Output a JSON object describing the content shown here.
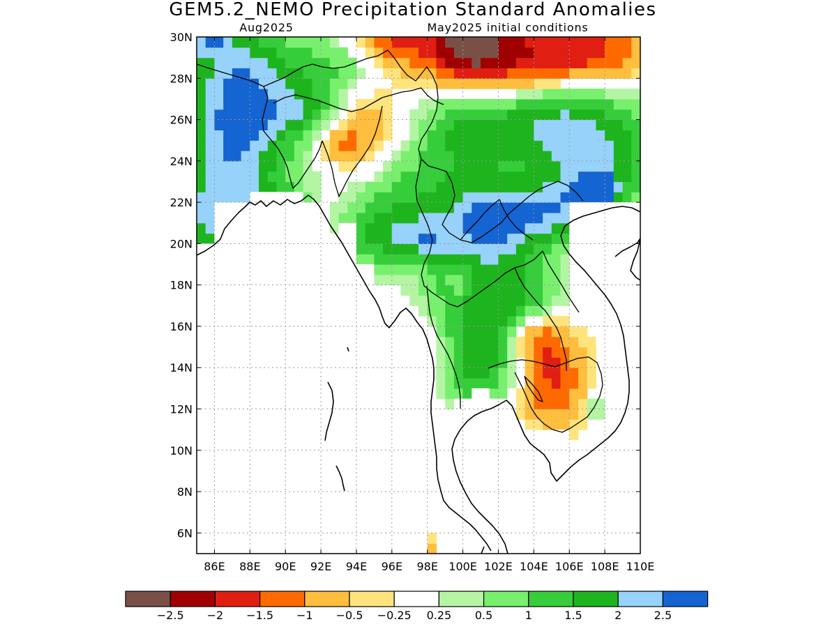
{
  "title": "GEM5.2_NEMO Precipitation Standard Anomalies",
  "subtitle_left": "Aug2025",
  "subtitle_right": "May2025 initial conditions",
  "map": {
    "lon_range": [
      85,
      110
    ],
    "lat_range": [
      5,
      30
    ],
    "lon_ticks": [
      {
        "value": 86,
        "label": "86E"
      },
      {
        "value": 88,
        "label": "88E"
      },
      {
        "value": 90,
        "label": "90E"
      },
      {
        "value": 92,
        "label": "92E"
      },
      {
        "value": 94,
        "label": "94E"
      },
      {
        "value": 96,
        "label": "96E"
      },
      {
        "value": 98,
        "label": "98E"
      },
      {
        "value": 100,
        "label": "100E"
      },
      {
        "value": 102,
        "label": "102E"
      },
      {
        "value": 104,
        "label": "104E"
      },
      {
        "value": 106,
        "label": "106E"
      },
      {
        "value": 108,
        "label": "108E"
      },
      {
        "value": 110,
        "label": "110E"
      }
    ],
    "lat_ticks": [
      {
        "value": 30,
        "label": "30N"
      },
      {
        "value": 28,
        "label": "28N"
      },
      {
        "value": 26,
        "label": "26N"
      },
      {
        "value": 24,
        "label": "24N"
      },
      {
        "value": 22,
        "label": "22N"
      },
      {
        "value": 20,
        "label": "20N"
      },
      {
        "value": 18,
        "label": "18N"
      },
      {
        "value": 16,
        "label": "16N"
      },
      {
        "value": 14,
        "label": "14N"
      },
      {
        "value": 12,
        "label": "12N"
      },
      {
        "value": 10,
        "label": "10N"
      },
      {
        "value": 8,
        "label": "8N"
      },
      {
        "value": 6,
        "label": "6N"
      }
    ],
    "grid": true,
    "mask_ocean": true
  },
  "legend": {
    "colors": [
      "#7a5046",
      "#a00000",
      "#e01e12",
      "#ff6a00",
      "#ffbe3d",
      "#ffe47e",
      "#ffffff",
      "#b4f5a4",
      "#78f06e",
      "#36cd3a",
      "#1eb41e",
      "#96d2fa",
      "#1464d2"
    ],
    "labels": [
      "−2.5",
      "−2",
      "−1.5",
      "−1",
      "−0.5",
      "−0.25",
      "0.25",
      "0.5",
      "1",
      "1.5",
      "2",
      "2.5"
    ]
  },
  "field": {
    "blobs": [
      {
        "lon": 101.5,
        "lat": 21.0,
        "amp": 2.6,
        "sx": 1.8,
        "sy": 1.6
      },
      {
        "lon": 97.5,
        "lat": 20.3,
        "amp": 1.6,
        "sx": 1.4,
        "sy": 0.8
      },
      {
        "lon": 97.5,
        "lat": 22.5,
        "amp": 1.1,
        "sx": 1.8,
        "sy": 1.5
      },
      {
        "lon": 95.0,
        "lat": 20.5,
        "amp": 1.2,
        "sx": 1.3,
        "sy": 1.5
      },
      {
        "lon": 99.0,
        "lat": 18.5,
        "amp": 0.7,
        "sx": 1.2,
        "sy": 1.5
      },
      {
        "lon": 101.0,
        "lat": 16.0,
        "amp": 1.6,
        "sx": 1.6,
        "sy": 1.8
      },
      {
        "lon": 101.0,
        "lat": 13.5,
        "amp": 1.0,
        "sx": 1.5,
        "sy": 1.2
      },
      {
        "lon": 103.5,
        "lat": 17.5,
        "amp": 1.2,
        "sx": 1.6,
        "sy": 1.2
      },
      {
        "lon": 105.0,
        "lat": 21.5,
        "amp": 1.8,
        "sx": 1.6,
        "sy": 1.1
      },
      {
        "lon": 107.5,
        "lat": 22.5,
        "amp": 2.4,
        "sx": 1.0,
        "sy": 0.7
      },
      {
        "lon": 107.5,
        "lat": 24.5,
        "amp": 1.8,
        "sx": 2.8,
        "sy": 1.8
      },
      {
        "lon": 104.5,
        "lat": 26.0,
        "amp": 1.4,
        "sx": 2.5,
        "sy": 1.4
      },
      {
        "lon": 100.0,
        "lat": 25.5,
        "amp": 1.4,
        "sx": 1.8,
        "sy": 1.5
      },
      {
        "lon": 87.5,
        "lat": 28.0,
        "amp": 2.2,
        "sx": 2.2,
        "sy": 2.2
      },
      {
        "lon": 87.0,
        "lat": 24.0,
        "amp": 2.0,
        "sx": 2.4,
        "sy": 2.2
      },
      {
        "lon": 86.0,
        "lat": 21.0,
        "amp": 1.5,
        "sx": 1.5,
        "sy": 1.4
      },
      {
        "lon": 85.5,
        "lat": 30.0,
        "amp": 1.6,
        "sx": 1.0,
        "sy": 0.7
      },
      {
        "lon": 89.5,
        "lat": 22.0,
        "amp": 1.6,
        "sx": 1.0,
        "sy": 0.5
      },
      {
        "lon": 91.0,
        "lat": 26.5,
        "amp": 1.2,
        "sx": 1.6,
        "sy": 0.8
      },
      {
        "lon": 92.5,
        "lat": 28.5,
        "amp": 1.0,
        "sx": 1.8,
        "sy": 1.0
      },
      {
        "lon": 94.5,
        "lat": 25.5,
        "amp": -0.9,
        "sx": 1.5,
        "sy": 1.5
      },
      {
        "lon": 93.0,
        "lat": 24.8,
        "amp": -0.8,
        "sx": 0.8,
        "sy": 0.6
      },
      {
        "lon": 100.5,
        "lat": 29.5,
        "amp": -3.0,
        "sx": 2.0,
        "sy": 1.4
      },
      {
        "lon": 96.0,
        "lat": 30.0,
        "amp": -1.4,
        "sx": 1.5,
        "sy": 1.0
      },
      {
        "lon": 107.0,
        "lat": 29.3,
        "amp": -1.8,
        "sx": 2.4,
        "sy": 1.2
      },
      {
        "lon": 104.0,
        "lat": 28.5,
        "amp": -0.8,
        "sx": 1.5,
        "sy": 1.2
      },
      {
        "lon": 99.8,
        "lat": 18.3,
        "amp": -1.0,
        "sx": 0.5,
        "sy": 0.5
      },
      {
        "lon": 105.0,
        "lat": 13.5,
        "amp": -1.6,
        "sx": 1.4,
        "sy": 1.8
      },
      {
        "lon": 104.0,
        "lat": 15.5,
        "amp": -1.0,
        "sx": 1.0,
        "sy": 0.8
      },
      {
        "lon": 98.3,
        "lat": 14.8,
        "amp": -0.6,
        "sx": 0.5,
        "sy": 1.0
      },
      {
        "lon": 98.0,
        "lat": 5.3,
        "amp": -0.9,
        "sx": 0.4,
        "sy": 0.5
      },
      {
        "lon": 104.0,
        "lat": 10.2,
        "amp": 0.8,
        "sx": 0.7,
        "sy": 0.6
      },
      {
        "lon": 107.5,
        "lat": 12.0,
        "amp": 0.8,
        "sx": 0.4,
        "sy": 0.6
      }
    ]
  }
}
